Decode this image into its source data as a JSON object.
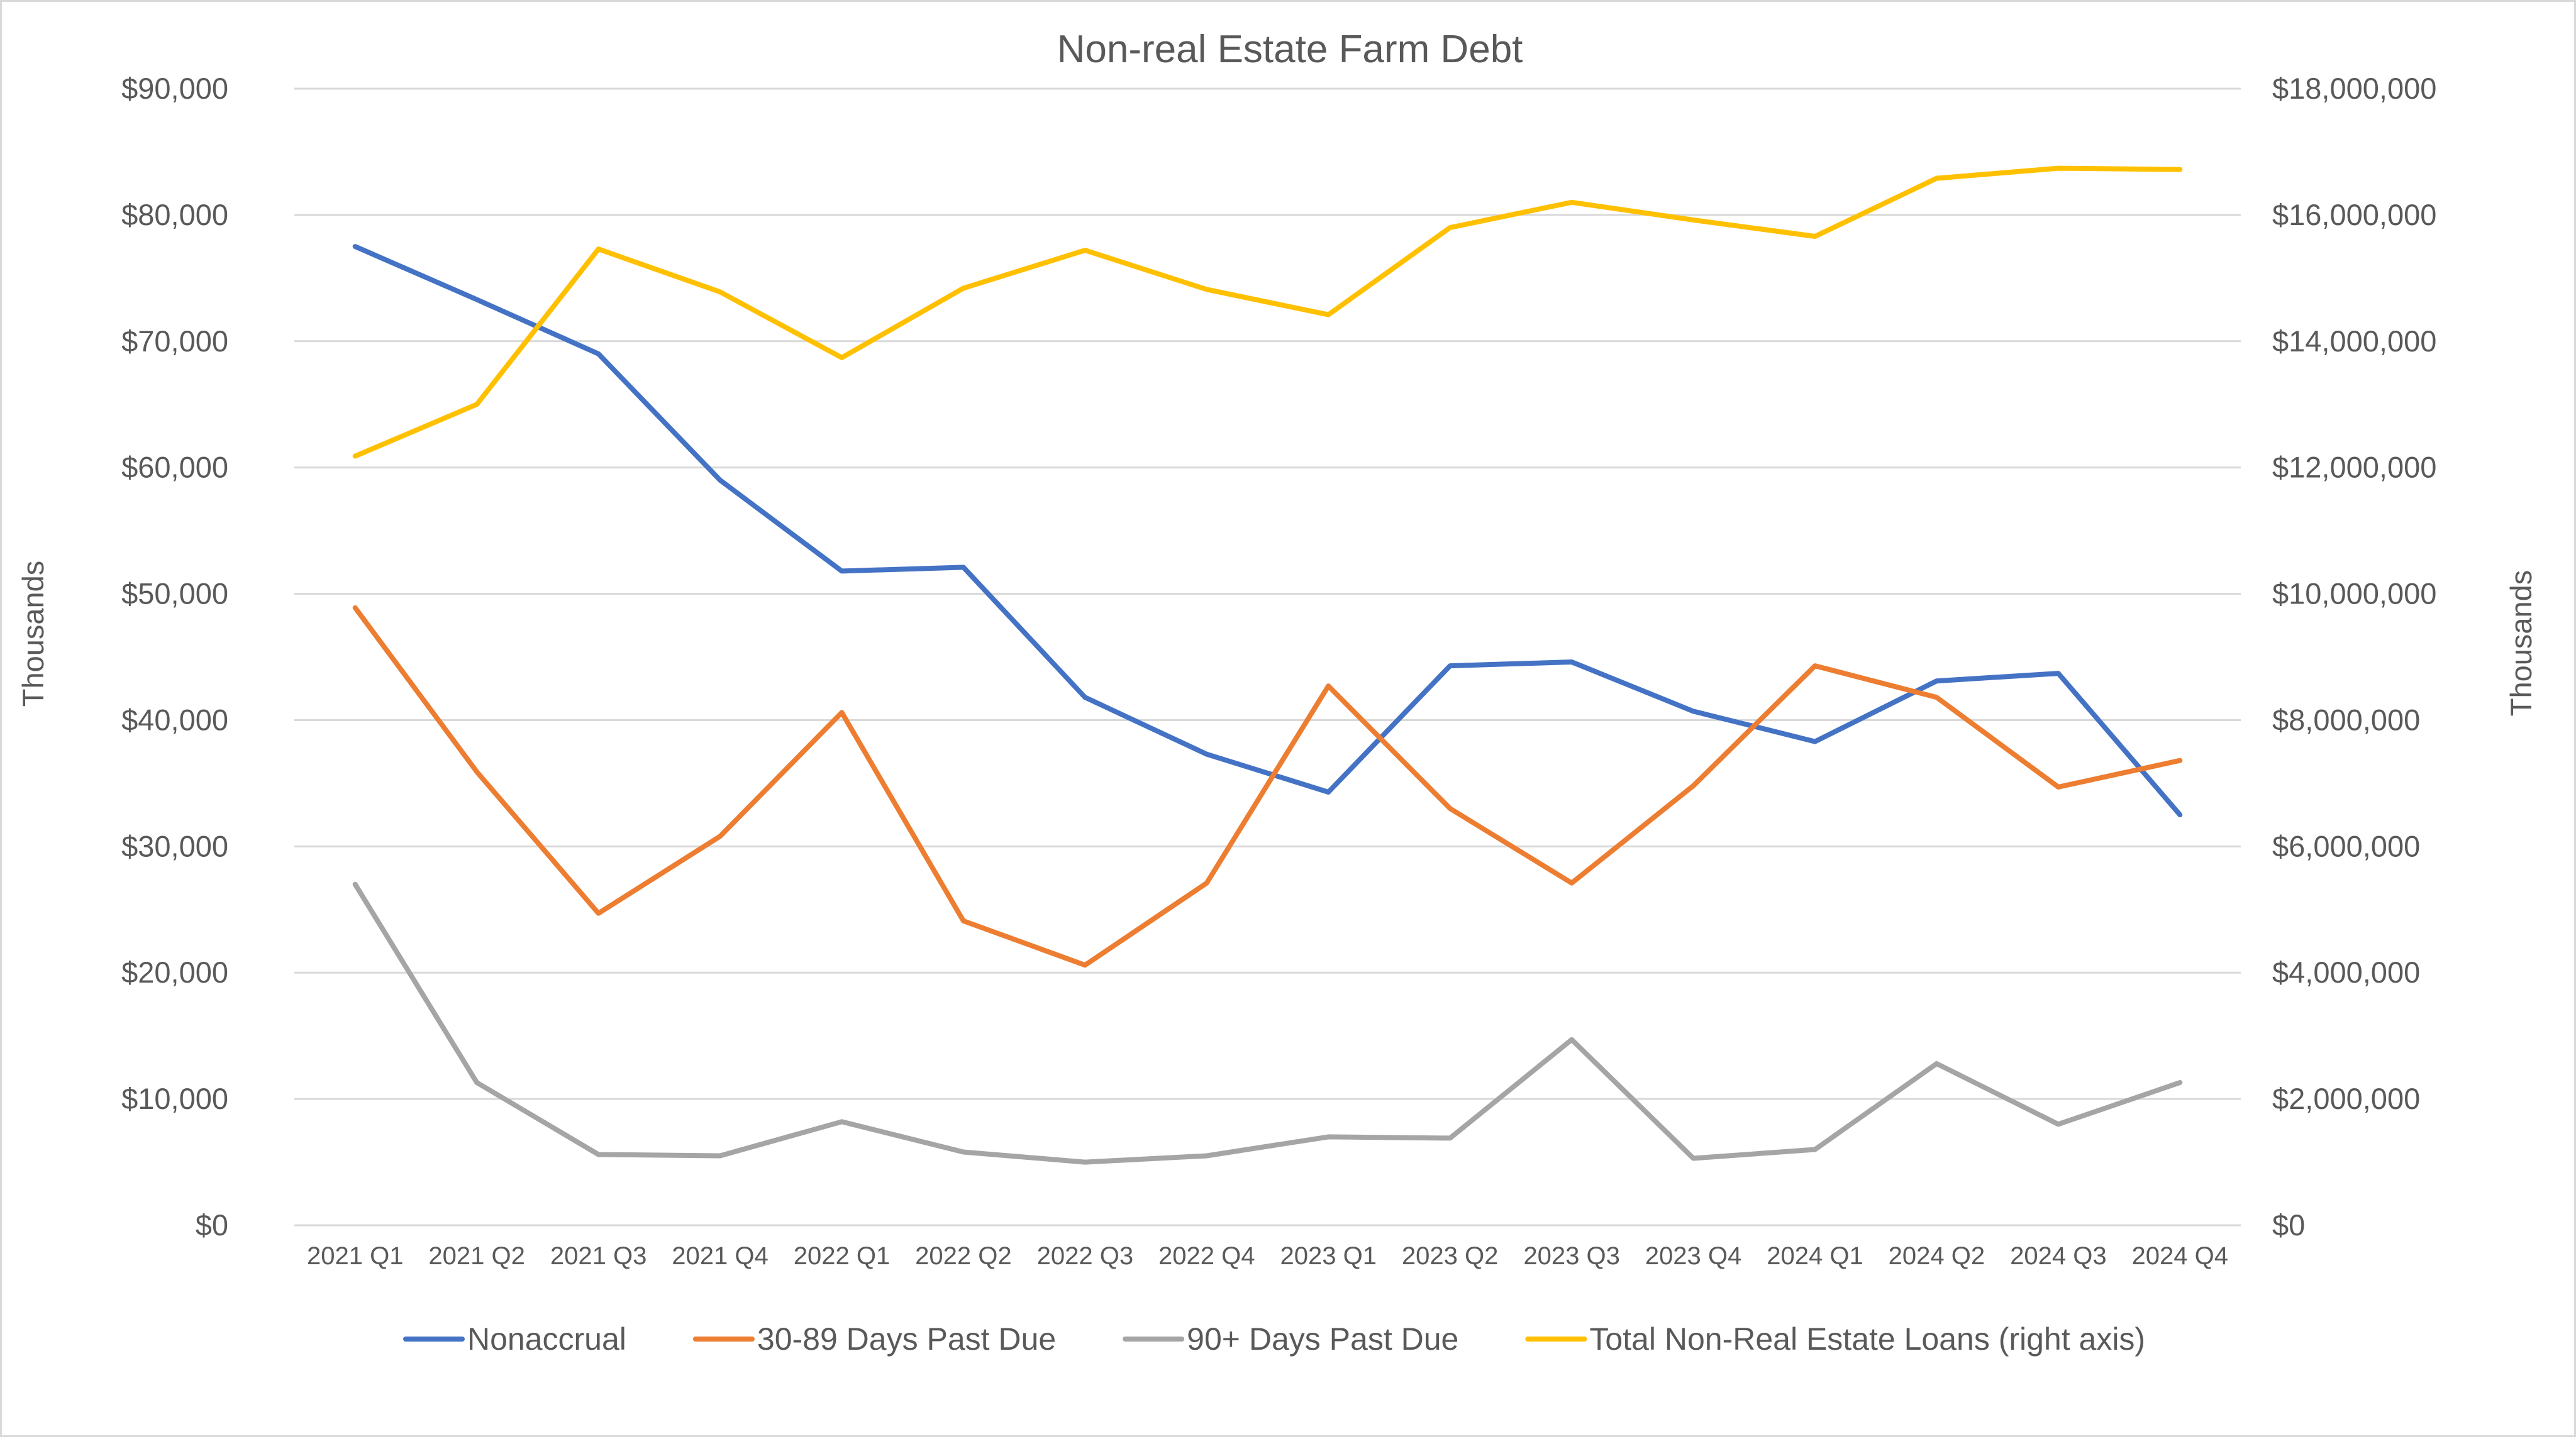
{
  "chart_data": {
    "type": "line",
    "title": "Non-real Estate Farm Debt",
    "ylabel": "Thousands",
    "y2label": "Thousands",
    "xlabel": "",
    "categories": [
      "2021 Q1",
      "2021 Q2",
      "2021 Q3",
      "2021 Q4",
      "2022 Q1",
      "2022 Q2",
      "2022 Q3",
      "2022 Q4",
      "2023 Q1",
      "2023 Q2",
      "2023 Q3",
      "2023 Q4",
      "2024 Q1",
      "2024 Q2",
      "2024 Q3",
      "2024 Q4"
    ],
    "ylim": [
      0,
      90000
    ],
    "y2lim": [
      0,
      18000000
    ],
    "y_ticks": [
      0,
      10000,
      20000,
      30000,
      40000,
      50000,
      60000,
      70000,
      80000,
      90000
    ],
    "y_tick_labels": [
      "$0",
      "$10,000",
      "$20,000",
      "$30,000",
      "$40,000",
      "$50,000",
      "$60,000",
      "$70,000",
      "$80,000",
      "$90,000"
    ],
    "y2_ticks": [
      0,
      2000000,
      4000000,
      6000000,
      8000000,
      10000000,
      12000000,
      14000000,
      16000000,
      18000000
    ],
    "y2_tick_labels": [
      "$0",
      "$2,000,000",
      "$4,000,000",
      "$6,000,000",
      "$8,000,000",
      "$10,000,000",
      "$12,000,000",
      "$14,000,000",
      "$16,000,000",
      "$18,000,000"
    ],
    "grid": true,
    "legend_position": "bottom",
    "series": [
      {
        "name": "Nonaccrual",
        "axis": "left",
        "color": "#4472C4",
        "values": [
          77500,
          73300,
          69000,
          59000,
          51800,
          52100,
          41800,
          37300,
          34300,
          44300,
          44600,
          40700,
          38300,
          43100,
          43700,
          32500
        ]
      },
      {
        "name": "30-89 Days Past Due",
        "axis": "left",
        "color": "#ED7D31",
        "values": [
          48900,
          35900,
          24700,
          30800,
          40600,
          24100,
          20600,
          27100,
          42700,
          33000,
          27100,
          34800,
          44300,
          41800,
          34700,
          36800
        ]
      },
      {
        "name": "90+ Days Past Due",
        "axis": "left",
        "color": "#A5A5A5",
        "values": [
          27000,
          11300,
          5600,
          5500,
          8200,
          5800,
          5000,
          5500,
          7000,
          6900,
          14700,
          5300,
          6000,
          12800,
          8000,
          11300
        ]
      },
      {
        "name": "Total Non-Real Estate Loans (right axis)",
        "axis": "right",
        "color": "#FFC000",
        "values": [
          12180000,
          13000000,
          15460000,
          14780000,
          13740000,
          14840000,
          15440000,
          14820000,
          14420000,
          15800000,
          16200000,
          15920000,
          15660000,
          16580000,
          16740000,
          16720000
        ]
      }
    ]
  }
}
